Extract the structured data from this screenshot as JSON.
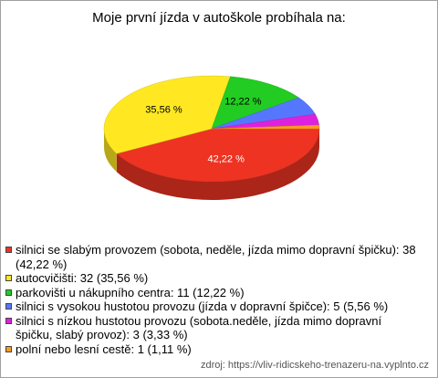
{
  "chart_data": {
    "type": "pie",
    "title": "Moje první jízda v autoškole probíhala na:",
    "categories": [
      "silnici se slabým provozem (sobota, neděle, jízda mimo dopravní špičku): 38 (42,22 %)",
      "autocvičišti: 32 (35,56 %)",
      "parkovišti u nákupního centra: 11 (12,22 %)",
      "silnici s vysokou hustotou provozu (jízda v dopravní špičce): 5 (5,56 %)",
      "silnici s nízkou hustotou provozu (sobota.neděle, jízda mimo dopravní špičku, slabý provoz): 3 (3,33 %)",
      "polní nebo lesní cestě: 1 (1,11 %)"
    ],
    "values": [
      38,
      32,
      11,
      5,
      3,
      1
    ],
    "value_labels": [
      "42,22 %",
      "35,56 %",
      "12,22 %",
      null,
      null,
      null
    ],
    "colors": [
      "#ee3322",
      "#ffe822",
      "#22cc22",
      "#5577ff",
      "#dd22dd",
      "#ff9922"
    ],
    "source": "zdroj: https://vliv-ridicskeho-trenazeru-na.vyplnto.cz"
  }
}
